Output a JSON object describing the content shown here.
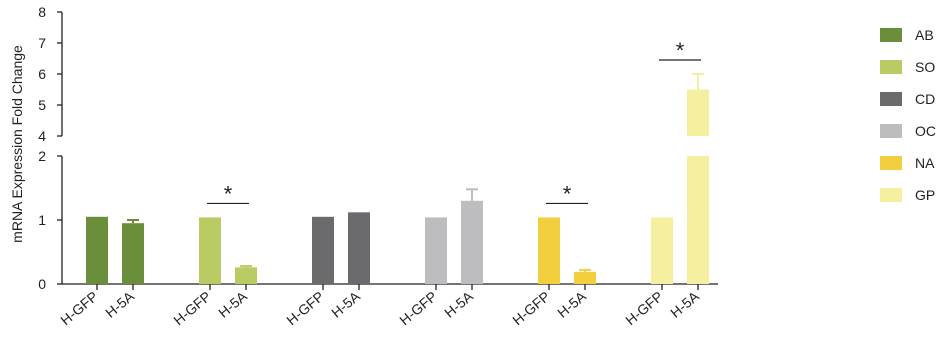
{
  "chart_data": {
    "type": "bar",
    "ylabel": "mRNA Expression Fold Change",
    "axis_segments": [
      {
        "ylim": [
          0,
          2
        ],
        "ticks": [
          "0",
          "1",
          "2"
        ]
      },
      {
        "ylim": [
          4,
          8
        ],
        "ticks": [
          "4",
          "5",
          "6",
          "7",
          "8"
        ]
      }
    ],
    "categories": [
      "H-GFP",
      "H-5A"
    ],
    "groups": [
      {
        "name": "AB",
        "color": "#6b8e3a",
        "values": [
          1.05,
          0.95
        ],
        "errors": [
          0,
          0.05
        ],
        "significant": false
      },
      {
        "name": "SO",
        "color": "#b8cc63",
        "values": [
          1.04,
          0.26
        ],
        "errors": [
          0,
          0.02
        ],
        "significant": true
      },
      {
        "name": "CD",
        "color": "#6b6b6d",
        "values": [
          1.05,
          1.12
        ],
        "errors": [
          0,
          0
        ],
        "significant": false
      },
      {
        "name": "OC",
        "color": "#bdbdc0",
        "values": [
          1.04,
          1.3
        ],
        "errors": [
          0,
          0.18
        ],
        "significant": false
      },
      {
        "name": "NA",
        "color": "#f1cf3e",
        "values": [
          1.04,
          0.19
        ],
        "errors": [
          0,
          0.03
        ],
        "significant": true
      },
      {
        "name": "GP",
        "color": "#f4f0a0",
        "values": [
          1.04,
          5.5
        ],
        "errors": [
          0,
          0.5
        ],
        "significant": true
      }
    ],
    "significance_mark": "*",
    "legend": {
      "position": "right"
    }
  }
}
